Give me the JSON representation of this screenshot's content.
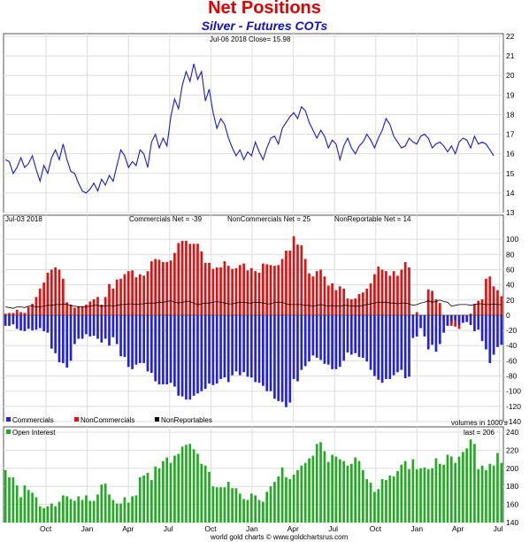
{
  "title": "Net Positions",
  "subtitle": "Silver - Futures COTs",
  "footer": "world gold charts © www.goldchartsrus.com",
  "chart_data": [
    {
      "type": "line",
      "name": "price-panel",
      "annotation": "Jul-06 2018  Close= 15.98",
      "ylim": [
        13,
        22
      ],
      "yticks": [
        13,
        14,
        15,
        16,
        17,
        18,
        19,
        20,
        21,
        22
      ],
      "color": "#1a1ad0",
      "values": [
        15.7,
        15.6,
        15.0,
        15.3,
        15.8,
        15.3,
        15.5,
        15.9,
        15.2,
        14.6,
        15.4,
        15.0,
        15.8,
        16.2,
        15.7,
        16.5,
        15.7,
        15.1,
        15.0,
        14.5,
        14.1,
        14.0,
        14.2,
        14.5,
        14.1,
        14.7,
        14.4,
        14.9,
        14.6,
        15.4,
        16.2,
        15.9,
        15.3,
        15.6,
        15.4,
        16.2,
        16.0,
        15.3,
        16.6,
        17.0,
        16.3,
        16.8,
        16.4,
        17.9,
        18.8,
        18.3,
        19.5,
        20.2,
        19.7,
        20.6,
        19.8,
        20.2,
        18.7,
        19.3,
        18.1,
        17.3,
        17.8,
        17.5,
        16.8,
        16.3,
        15.9,
        16.2,
        15.7,
        16.1,
        15.9,
        16.6,
        16.1,
        15.7,
        16.3,
        16.8,
        16.9,
        16.5,
        17.3,
        17.6,
        17.9,
        18.1,
        17.8,
        18.4,
        18.2,
        17.6,
        17.2,
        16.8,
        17.2,
        16.9,
        16.3,
        16.7,
        16.5,
        15.7,
        16.4,
        16.8,
        16.3,
        16.0,
        16.4,
        16.6,
        17.0,
        16.7,
        16.3,
        16.8,
        17.2,
        17.8,
        17.5,
        16.9,
        16.6,
        16.3,
        16.4,
        16.8,
        16.6,
        16.5,
        16.9,
        17.0,
        16.8,
        16.3,
        16.5,
        16.6,
        16.4,
        16.1,
        16.4,
        16.0,
        16.6,
        16.8,
        16.7,
        16.3,
        16.9,
        16.5,
        16.6,
        16.5,
        16.2,
        15.9
      ],
      "x_labels": [
        "Oct",
        "Jan",
        "Apr",
        "Jul",
        "Oct",
        "Jan",
        "Apr",
        "Jul",
        "Oct",
        "Jan",
        "Apr",
        "Jul"
      ]
    },
    {
      "type": "bar",
      "name": "net-positions-panel",
      "annotation": "Jul-03 2018",
      "legend_entries": [
        "Commercials Net = -39",
        "NonCommercials Net = 25",
        "NonReportable Net = 14"
      ],
      "ylim": [
        -140,
        120
      ],
      "yticks": [
        -140,
        -120,
        -100,
        -80,
        -60,
        -40,
        -20,
        0,
        20,
        40,
        60,
        80,
        100
      ],
      "units_note": "volumes in 1000's",
      "series": [
        {
          "name": "Commercials",
          "color": "#2222dd",
          "values": [
            -14,
            -14,
            -12,
            -18,
            -20,
            -21,
            -18,
            -20,
            -19,
            -17,
            -21,
            -23,
            -44,
            -50,
            -62,
            -63,
            -69,
            -60,
            -38,
            -31,
            -31,
            -25,
            -28,
            -27,
            -31,
            -36,
            -31,
            -40,
            -29,
            -38,
            -54,
            -55,
            -68,
            -71,
            -65,
            -63,
            -63,
            -74,
            -76,
            -87,
            -91,
            -91,
            -91,
            -89,
            -94,
            -106,
            -107,
            -111,
            -111,
            -106,
            -103,
            -100,
            -97,
            -90,
            -92,
            -90,
            -84,
            -82,
            -88,
            -79,
            -74,
            -79,
            -75,
            -81,
            -82,
            -88,
            -89,
            -93,
            -100,
            -100,
            -110,
            -113,
            -114,
            -121,
            -115,
            -84,
            -87,
            -72,
            -67,
            -61,
            -53,
            -56,
            -59,
            -64,
            -65,
            -71,
            -71,
            -68,
            -60,
            -49,
            -52,
            -50,
            -55,
            -56,
            -61,
            -72,
            -80,
            -85,
            -89,
            -84,
            -84,
            -79,
            -75,
            -72,
            -83,
            -81,
            -30,
            -28,
            -17,
            -28,
            -45,
            -39,
            -48,
            -38,
            -23,
            -14,
            -9,
            -6,
            -13,
            -10,
            -9,
            -13,
            -21,
            -19,
            -34,
            -45,
            -63,
            -52,
            -42,
            -39
          ]
        },
        {
          "name": "NonCommercials",
          "color": "#e11111",
          "values": [
            2,
            3,
            3,
            7,
            4,
            3,
            11,
            15,
            24,
            35,
            43,
            56,
            60,
            63,
            60,
            48,
            17,
            14,
            10,
            12,
            12,
            14,
            18,
            21,
            24,
            14,
            24,
            41,
            35,
            47,
            48,
            54,
            58,
            59,
            50,
            54,
            52,
            58,
            71,
            74,
            73,
            70,
            70,
            72,
            82,
            95,
            98,
            98,
            94,
            94,
            94,
            84,
            69,
            69,
            61,
            63,
            63,
            71,
            65,
            61,
            62,
            66,
            68,
            59,
            62,
            58,
            56,
            68,
            67,
            66,
            65,
            66,
            74,
            85,
            85,
            104,
            93,
            92,
            74,
            55,
            51,
            58,
            60,
            51,
            39,
            42,
            33,
            38,
            35,
            22,
            21,
            22,
            28,
            30,
            35,
            42,
            54,
            64,
            60,
            58,
            52,
            58,
            52,
            60,
            70,
            63,
            1,
            4,
            0,
            0,
            34,
            32,
            21,
            16,
            -6,
            -13,
            -14,
            -15,
            -18,
            -9,
            -3,
            2,
            15,
            19,
            21,
            48,
            51,
            38,
            33,
            25
          ]
        },
        {
          "name": "NonReportables",
          "color": "#000000",
          "values": [
            11,
            10,
            9,
            11,
            11,
            10,
            12,
            12,
            11,
            11,
            12,
            13,
            13,
            14,
            14,
            15,
            14,
            13,
            12,
            11,
            11,
            11,
            12,
            13,
            13,
            12,
            12,
            13,
            12,
            13,
            14,
            14,
            15,
            15,
            14,
            15,
            15,
            16,
            16,
            16,
            17,
            17,
            18,
            19,
            17,
            16,
            17,
            18,
            18,
            16,
            14,
            15,
            16,
            16,
            17,
            18,
            17,
            16,
            15,
            15,
            16,
            17,
            17,
            16,
            16,
            17,
            17,
            16,
            15,
            15,
            17,
            17,
            17,
            15,
            14,
            14,
            14,
            14,
            13,
            13,
            12,
            13,
            14,
            13,
            12,
            13,
            12,
            12,
            13,
            13,
            12,
            12,
            12,
            13,
            14,
            15,
            16,
            17,
            17,
            17,
            16,
            16,
            15,
            16,
            16,
            15,
            13,
            14,
            16,
            17,
            19,
            17,
            18,
            20,
            18,
            17,
            12,
            13,
            14,
            14,
            14,
            13,
            14,
            15,
            15,
            14,
            14,
            15,
            14,
            14
          ]
        }
      ]
    },
    {
      "type": "bar",
      "name": "open-interest-panel",
      "annotation": "last = 206",
      "legend": "Open Interest",
      "ylim": [
        140,
        240
      ],
      "yticks": [
        140,
        160,
        180,
        200,
        220,
        240
      ],
      "color": "#22aa22",
      "values": [
        198,
        190,
        190,
        181,
        168,
        181,
        176,
        173,
        168,
        158,
        156,
        158,
        161,
        158,
        163,
        170,
        169,
        166,
        164,
        169,
        165,
        170,
        164,
        164,
        171,
        182,
        183,
        171,
        165,
        161,
        161,
        168,
        162,
        169,
        170,
        190,
        192,
        195,
        187,
        202,
        200,
        208,
        212,
        206,
        214,
        216,
        224,
        226,
        227,
        221,
        216,
        205,
        203,
        196,
        180,
        179,
        179,
        179,
        185,
        178,
        178,
        172,
        166,
        165,
        172,
        170,
        165,
        163,
        174,
        180,
        185,
        191,
        201,
        190,
        188,
        193,
        198,
        203,
        206,
        211,
        214,
        227,
        229,
        219,
        207,
        215,
        213,
        210,
        208,
        203,
        205,
        212,
        208,
        198,
        188,
        184,
        174,
        177,
        188,
        187,
        192,
        191,
        197,
        204,
        208,
        199,
        210,
        199,
        200,
        201,
        199,
        200,
        211,
        205,
        204,
        215,
        213,
        206,
        213,
        218,
        222,
        232,
        227,
        199,
        203,
        198,
        205,
        203,
        217,
        206
      ]
    }
  ],
  "legends": {
    "commercials": "Commercials",
    "noncommercials": "NonCommercials",
    "nonreportables": "NonReportables"
  }
}
